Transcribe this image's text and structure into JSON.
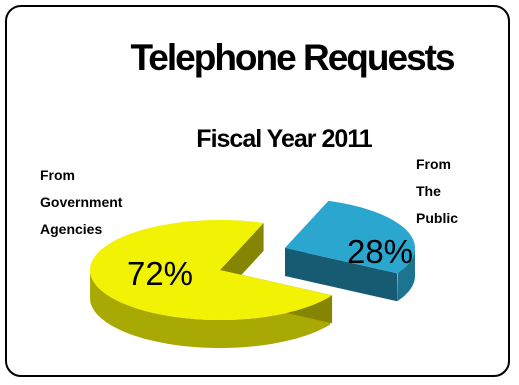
{
  "chart_data": {
    "type": "pie",
    "title": "Telephone Requests",
    "subtitle": "Fiscal Year 2011",
    "slices": [
      {
        "label_lines": [
          "From",
          "Government",
          "Agencies"
        ],
        "value": 72,
        "value_label": "72%",
        "color": "#f2f205"
      },
      {
        "label_lines": [
          "From",
          "The",
          "Public"
        ],
        "value": 28,
        "value_label": "28%",
        "color": "#2aa6cf"
      }
    ],
    "three_d": true,
    "exploded": true
  }
}
